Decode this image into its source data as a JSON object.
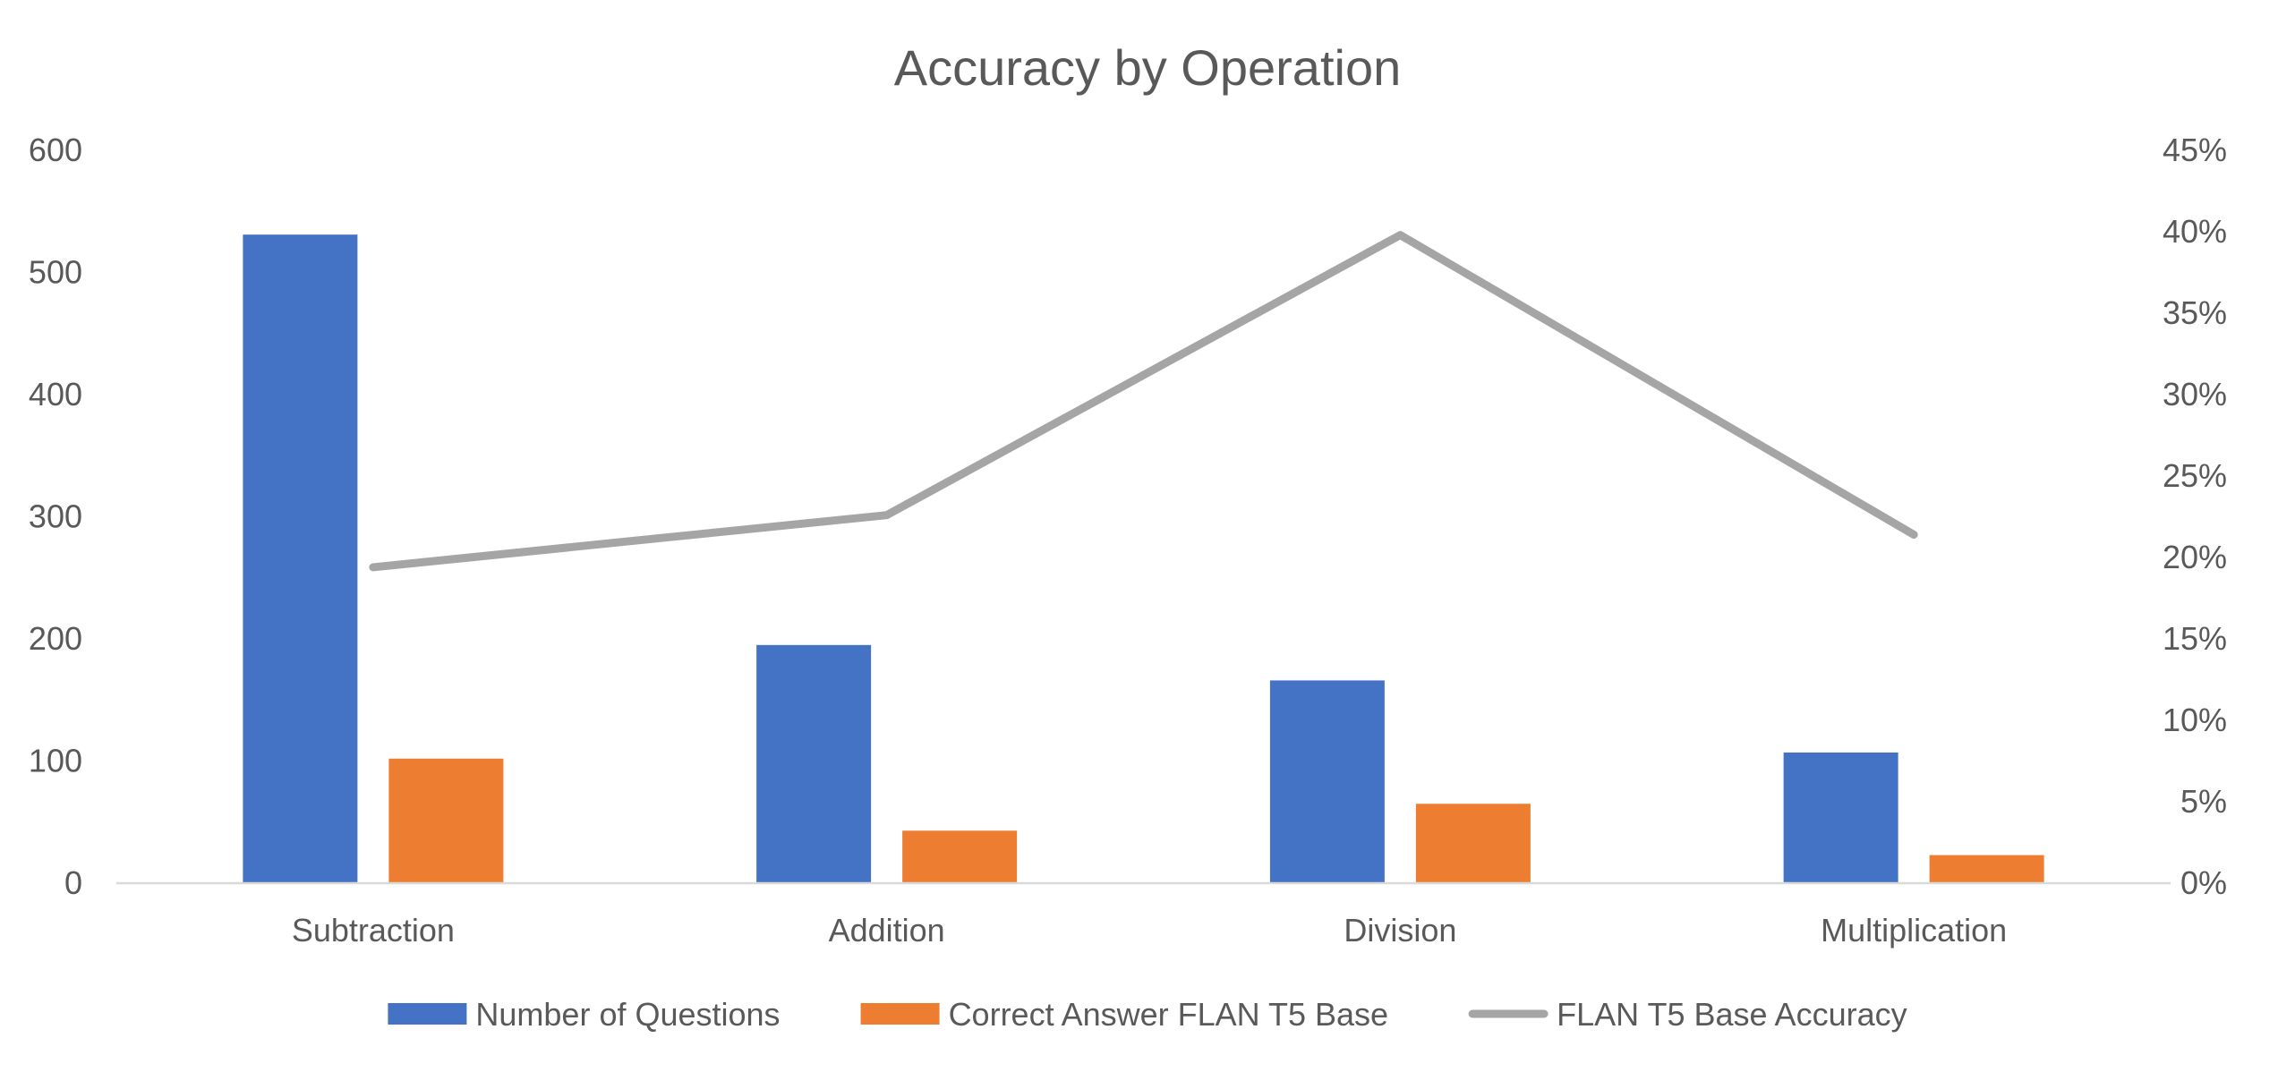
{
  "chart_data": {
    "type": "bar",
    "title": "Accuracy by Operation",
    "categories": [
      "Subtraction",
      "Addition",
      "Division",
      "Multiplication"
    ],
    "series": [
      {
        "name": "Number of Questions",
        "kind": "bar",
        "axis": "left",
        "color": "#4472C4",
        "values": [
          531,
          195,
          166,
          107
        ]
      },
      {
        "name": "Correct Answer FLAN T5 Base",
        "kind": "bar",
        "axis": "left",
        "color": "#ED7D31",
        "values": [
          102,
          43,
          65,
          23
        ]
      },
      {
        "name": "FLAN T5 Base Accuracy",
        "kind": "line",
        "axis": "right",
        "color": "#A5A5A5",
        "values": [
          0.194,
          0.226,
          0.398,
          0.214
        ]
      }
    ],
    "left_axis": {
      "min": 0,
      "max": 600,
      "ticks": [
        "0",
        "100",
        "200",
        "300",
        "400",
        "500",
        "600"
      ]
    },
    "right_axis": {
      "min": 0,
      "max": 0.45,
      "ticks": [
        "0%",
        "5%",
        "10%",
        "15%",
        "20%",
        "25%",
        "30%",
        "35%",
        "40%",
        "45%"
      ]
    },
    "grid": false,
    "legend": "bottom"
  }
}
